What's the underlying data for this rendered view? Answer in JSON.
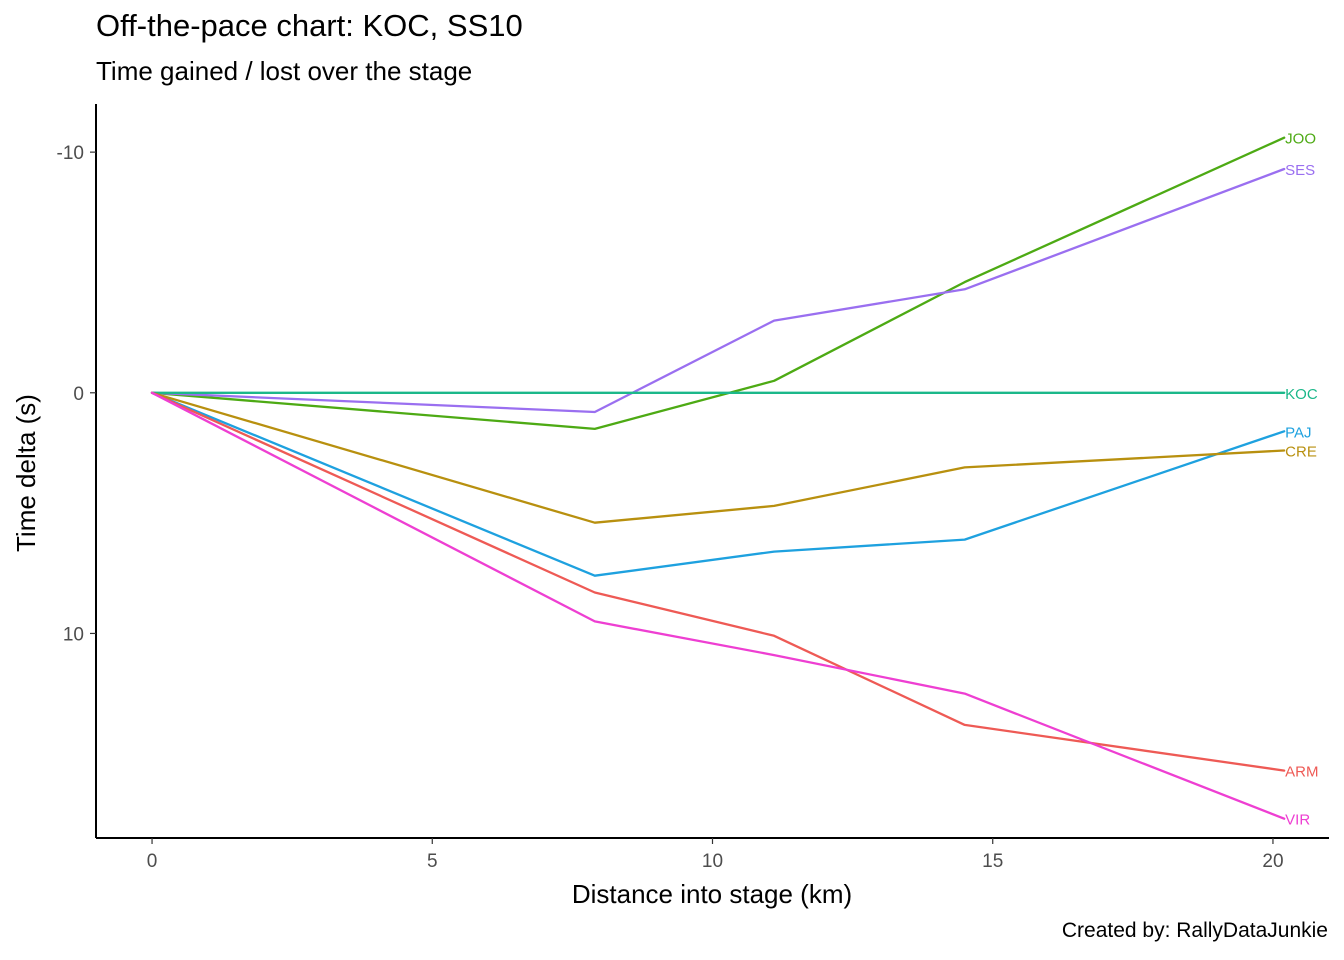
{
  "chart_data": {
    "type": "line",
    "title": "Off-the-pace chart: KOC, SS10",
    "subtitle": "Time gained / lost over the stage",
    "caption": "Created by: RallyDataJunkie",
    "xlabel": "Distance into stage (km)",
    "ylabel": "Time delta (s)",
    "xlim": [
      -1,
      21
    ],
    "ylim": [
      18.5,
      -12
    ],
    "y_reversed": true,
    "x_ticks": [
      0,
      5,
      10,
      15,
      20
    ],
    "x_tick_labels": [
      "0",
      "5",
      "10",
      "15",
      "20"
    ],
    "y_ticks": [
      -10,
      0,
      10
    ],
    "y_tick_labels": [
      "-10",
      "0",
      "10"
    ],
    "grid": false,
    "x": [
      0,
      7.9,
      11.1,
      14.5,
      20.2
    ],
    "series": [
      {
        "name": "JOO",
        "color": "#4DAA14",
        "values": [
          0,
          1.5,
          -0.5,
          -4.6,
          -10.6
        ]
      },
      {
        "name": "SES",
        "color": "#9A6FF0",
        "values": [
          0,
          0.8,
          -3.0,
          -4.3,
          -9.3
        ]
      },
      {
        "name": "KOC",
        "color": "#1CB88A",
        "values": [
          0,
          0,
          0,
          0,
          0
        ]
      },
      {
        "name": "PAJ",
        "color": "#1EA1DF",
        "values": [
          0,
          7.6,
          6.6,
          6.1,
          1.6
        ]
      },
      {
        "name": "CRE",
        "color": "#B8900F",
        "values": [
          0,
          5.4,
          4.7,
          3.1,
          2.4
        ]
      },
      {
        "name": "ARM",
        "color": "#EE5A55",
        "values": [
          0,
          8.3,
          10.1,
          13.8,
          15.7
        ]
      },
      {
        "name": "VIR",
        "color": "#EE3FD2",
        "values": [
          0,
          9.5,
          10.9,
          12.5,
          17.7
        ]
      }
    ]
  }
}
